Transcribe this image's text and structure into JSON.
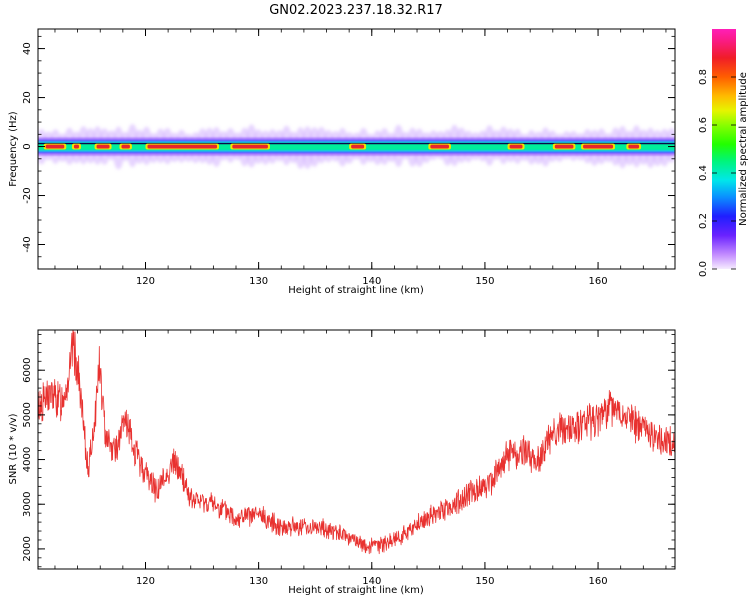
{
  "figure_title": "GN02.2023.237.18.32.R17",
  "colors": {
    "snr_line": "#e8312f",
    "axis": "#000000",
    "background": "#ffffff"
  },
  "chart_data": [
    {
      "type": "heatmap",
      "xlabel": "Height of straight line (km)",
      "ylabel": "Frequency (Hz)",
      "xlim": [
        110.5,
        166.8
      ],
      "ylim": [
        -50,
        48
      ],
      "xticks": [
        120,
        130,
        140,
        150,
        160
      ],
      "yticks": [
        40,
        20,
        0,
        -20,
        -40
      ],
      "colorbar": {
        "label": "Normalized spectral amplitude",
        "range": [
          0,
          1
        ],
        "ticks": [
          "0.0",
          "0.2",
          "0.4",
          "0.6",
          "0.8"
        ],
        "colormap": "gist_ncar-like (violet, blue, cyan, green, yellow, red, magenta)"
      },
      "band": {
        "center_hz": 0,
        "peak_width_hz": 2,
        "full_width_hz": 10,
        "peak_segments_km": [
          [
            111.0,
            113.0
          ],
          [
            113.5,
            114.3
          ],
          [
            115.5,
            117.0
          ],
          [
            117.7,
            118.8
          ],
          [
            120.0,
            126.5
          ],
          [
            127.5,
            131.0
          ],
          [
            138.0,
            139.5
          ],
          [
            145.0,
            147.0
          ],
          [
            152.0,
            153.5
          ],
          [
            156.0,
            158.0
          ],
          [
            158.5,
            161.5
          ],
          [
            162.5,
            163.8
          ]
        ]
      }
    },
    {
      "type": "line",
      "xlabel": "Height of straight line (km)",
      "ylabel": "SNR (10 * v/v)",
      "xlim": [
        110.5,
        166.8
      ],
      "ylim": [
        1550,
        6900
      ],
      "xticks": [
        120,
        130,
        140,
        150,
        160
      ],
      "yticks": [
        2000,
        3000,
        4000,
        5000,
        6000
      ],
      "series": [
        {
          "x": [
            110.6,
            111.5,
            112.5,
            113.3,
            113.6,
            114.2,
            114.7,
            115.0,
            115.6,
            115.9,
            116.4,
            117.0,
            117.5,
            118.2,
            119.0,
            120.0,
            121.0,
            122.0,
            122.5,
            123.3,
            124.0,
            126.0,
            128.0,
            130.0,
            132.0,
            134.0,
            136.0,
            138.0,
            139.5,
            141.0,
            143.0,
            145.0,
            147.0,
            149.0,
            150.5,
            152.0,
            153.5,
            154.5,
            156.0,
            158.0,
            160.0,
            161.0,
            162.5,
            163.5,
            164.5,
            165.5,
            166.7
          ],
          "y": [
            5200,
            5450,
            5300,
            5900,
            6650,
            5600,
            4200,
            3800,
            5100,
            6150,
            4700,
            4300,
            4250,
            4900,
            4200,
            3700,
            3300,
            3700,
            3950,
            3600,
            3100,
            3000,
            2700,
            2750,
            2500,
            2500,
            2450,
            2250,
            2050,
            2100,
            2350,
            2700,
            2950,
            3300,
            3500,
            4100,
            4200,
            3900,
            4600,
            4700,
            4900,
            5200,
            4950,
            4750,
            4600,
            4450,
            4350
          ]
        }
      ]
    }
  ]
}
